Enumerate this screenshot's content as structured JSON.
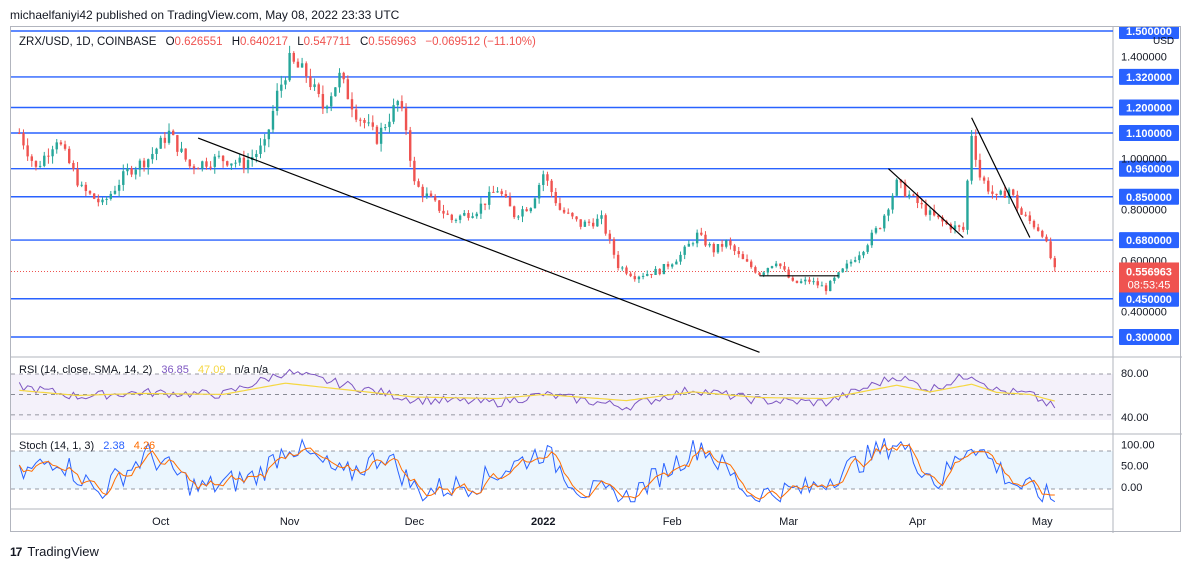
{
  "header": {
    "publisher": "michaelfaniyi42 published on TradingView.com, May 08, 2022 23:33 UTC"
  },
  "footer": {
    "brand": "TradingView",
    "logo_icon": "tradingview-logo-icon"
  },
  "colors": {
    "up": "#26a69a",
    "down": "#ef5350",
    "level": "#2962ff",
    "rsi": "#7e57c2",
    "rsi_ma": "#f5d742",
    "stoch_k": "#2962ff",
    "stoch_d": "#ff6d00",
    "trendline": "#000000"
  },
  "chart_data": [
    {
      "type": "candlestick",
      "symbol_line": {
        "symbol": "ZRX/USD, 1D, COINBASE",
        "open_label": "O",
        "open": "0.626551",
        "high_label": "H",
        "high": "0.640217",
        "low_label": "L",
        "low": "0.547711",
        "close_label": "C",
        "close": "0.556963",
        "change": "−0.069512 (−11.10%)"
      },
      "currency": "USD",
      "last_price": "0.556963",
      "countdown": "08:53:45",
      "y_ticks": [
        "1.400000",
        "1.000000",
        "0.800000",
        "0.600000",
        "0.400000"
      ],
      "levels": [
        "1.500000",
        "1.320000",
        "1.200000",
        "1.100000",
        "0.960000",
        "0.850000",
        "0.680000",
        "0.450000",
        "0.300000"
      ],
      "x_ticks": [
        "Oct",
        "Nov",
        "Dec",
        "2022",
        "Feb",
        "Mar",
        "Apr",
        "May"
      ],
      "trendlines": [
        {
          "from": [
            "2021-10-14",
            1.08
          ],
          "to": [
            "2022-02-26",
            0.24
          ]
        },
        {
          "from": [
            "2022-03-29",
            0.96
          ],
          "to": [
            "2022-04-16",
            0.69
          ]
        },
        {
          "from": [
            "2022-04-18",
            1.16
          ],
          "to": [
            "2022-05-02",
            0.69
          ]
        },
        {
          "from": [
            "2022-02-26",
            0.54
          ],
          "to": [
            "2022-03-17",
            0.54
          ]
        }
      ],
      "series_anchor_closes": [
        [
          "2021-09-01",
          1.1
        ],
        [
          "2021-09-05",
          0.96
        ],
        [
          "2021-09-10",
          1.08
        ],
        [
          "2021-09-16",
          0.88
        ],
        [
          "2021-09-21",
          0.82
        ],
        [
          "2021-09-27",
          0.95
        ],
        [
          "2021-10-02",
          1.0
        ],
        [
          "2021-10-07",
          1.1
        ],
        [
          "2021-10-12",
          0.97
        ],
        [
          "2021-10-19",
          1.0
        ],
        [
          "2021-10-25",
          0.98
        ],
        [
          "2021-10-30",
          1.05
        ],
        [
          "2021-11-02",
          1.25
        ],
        [
          "2021-11-05",
          1.38
        ],
        [
          "2021-11-09",
          1.33
        ],
        [
          "2021-11-13",
          1.2
        ],
        [
          "2021-11-17",
          1.32
        ],
        [
          "2021-11-21",
          1.18
        ],
        [
          "2021-11-26",
          1.08
        ],
        [
          "2021-12-01",
          1.22
        ],
        [
          "2021-12-03",
          1.12
        ],
        [
          "2021-12-05",
          0.9
        ],
        [
          "2021-12-10",
          0.82
        ],
        [
          "2021-12-14",
          0.76
        ],
        [
          "2021-12-20",
          0.8
        ],
        [
          "2021-12-25",
          0.88
        ],
        [
          "2021-12-29",
          0.78
        ],
        [
          "2022-01-02",
          0.82
        ],
        [
          "2022-01-05",
          0.94
        ],
        [
          "2022-01-09",
          0.8
        ],
        [
          "2022-01-14",
          0.74
        ],
        [
          "2022-01-19",
          0.76
        ],
        [
          "2022-01-23",
          0.58
        ],
        [
          "2022-01-27",
          0.54
        ],
        [
          "2022-02-02",
          0.56
        ],
        [
          "2022-02-07",
          0.62
        ],
        [
          "2022-02-11",
          0.7
        ],
        [
          "2022-02-15",
          0.64
        ],
        [
          "2022-02-18",
          0.67
        ],
        [
          "2022-02-22",
          0.6
        ],
        [
          "2022-02-26",
          0.55
        ],
        [
          "2022-03-02",
          0.6
        ],
        [
          "2022-03-06",
          0.51
        ],
        [
          "2022-03-10",
          0.52
        ],
        [
          "2022-03-14",
          0.49
        ],
        [
          "2022-03-18",
          0.56
        ],
        [
          "2022-03-23",
          0.65
        ],
        [
          "2022-03-27",
          0.74
        ],
        [
          "2022-03-31",
          0.9
        ],
        [
          "2022-04-04",
          0.84
        ],
        [
          "2022-04-08",
          0.78
        ],
        [
          "2022-04-12",
          0.74
        ],
        [
          "2022-04-16",
          0.72
        ],
        [
          "2022-04-18",
          1.1
        ],
        [
          "2022-04-20",
          0.93
        ],
        [
          "2022-04-24",
          0.84
        ],
        [
          "2022-04-27",
          0.88
        ],
        [
          "2022-04-30",
          0.78
        ],
        [
          "2022-05-03",
          0.74
        ],
        [
          "2022-05-05",
          0.71
        ],
        [
          "2022-05-08",
          0.56
        ]
      ]
    },
    {
      "type": "line",
      "name": "RSI (14, close, SMA, 14, 2)",
      "value": "36.85",
      "ma_value": "47.09",
      "extra": "n/a n/a",
      "y_ticks": [
        "80.00",
        "40.00"
      ],
      "series_anchors": [
        [
          "2021-09-01",
          58
        ],
        [
          "2021-09-15",
          48
        ],
        [
          "2021-09-30",
          52
        ],
        [
          "2021-10-20",
          50
        ],
        [
          "2021-11-04",
          72
        ],
        [
          "2021-11-20",
          58
        ],
        [
          "2021-12-05",
          45
        ],
        [
          "2021-12-25",
          42
        ],
        [
          "2022-01-05",
          50
        ],
        [
          "2022-01-25",
          38
        ],
        [
          "2022-02-10",
          55
        ],
        [
          "2022-02-26",
          44
        ],
        [
          "2022-03-14",
          42
        ],
        [
          "2022-03-31",
          68
        ],
        [
          "2022-04-08",
          55
        ],
        [
          "2022-04-18",
          70
        ],
        [
          "2022-04-24",
          54
        ],
        [
          "2022-05-02",
          50
        ],
        [
          "2022-05-08",
          37
        ]
      ]
    },
    {
      "type": "line",
      "name": "Stoch (14, 1, 3)",
      "k_value": "2.38",
      "d_value": "4.26",
      "y_ticks": [
        "100.00",
        "50.00",
        "0.00"
      ],
      "series_anchors": [
        [
          "2021-09-01",
          40
        ],
        [
          "2021-09-10",
          70
        ],
        [
          "2021-09-20",
          15
        ],
        [
          "2021-10-02",
          75
        ],
        [
          "2021-10-14",
          20
        ],
        [
          "2021-10-28",
          40
        ],
        [
          "2021-11-05",
          90
        ],
        [
          "2021-11-18",
          40
        ],
        [
          "2021-11-28",
          75
        ],
        [
          "2021-12-06",
          15
        ],
        [
          "2021-12-20",
          30
        ],
        [
          "2022-01-05",
          80
        ],
        [
          "2022-01-14",
          20
        ],
        [
          "2022-01-25",
          5
        ],
        [
          "2022-02-12",
          90
        ],
        [
          "2022-02-24",
          10
        ],
        [
          "2022-03-10",
          20
        ],
        [
          "2022-03-31",
          95
        ],
        [
          "2022-04-10",
          30
        ],
        [
          "2022-04-18",
          95
        ],
        [
          "2022-04-28",
          30
        ],
        [
          "2022-05-08",
          2
        ]
      ]
    }
  ]
}
